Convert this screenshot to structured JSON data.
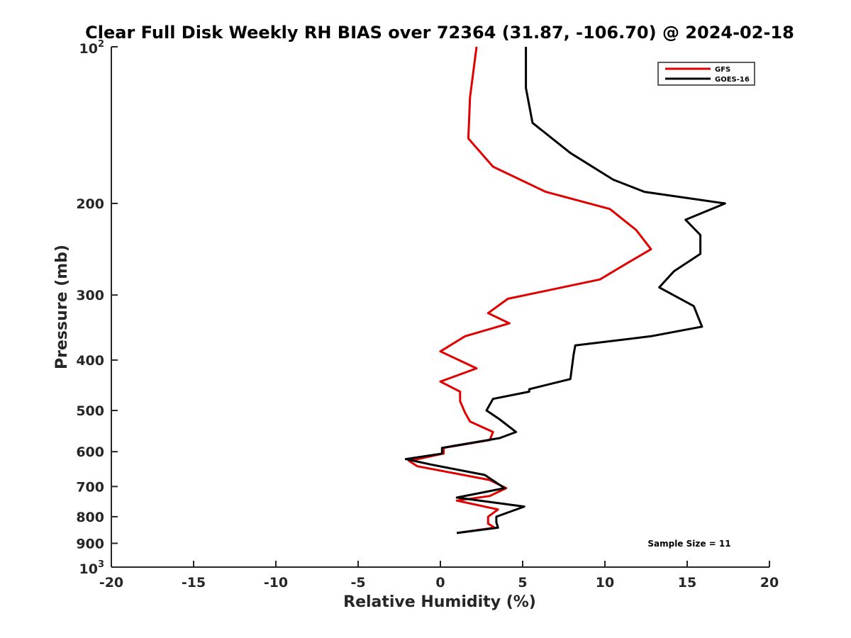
{
  "chart_data": {
    "type": "line",
    "title": "Clear Full Disk Weekly RH BIAS over 72364 (31.87, -106.70) @ 2024-02-18",
    "xlabel": "Relative Humidity (%)",
    "ylabel": "Pressure (mb)",
    "xlim": [
      -20,
      20
    ],
    "ylim": [
      100,
      1000
    ],
    "y_scale": "log",
    "y_reversed": true,
    "x_ticks": [
      "-20",
      "-15",
      "-10",
      "-5",
      "0",
      "5",
      "10",
      "15",
      "20"
    ],
    "y_ticks": [
      {
        "value": 100,
        "base": "10",
        "exp": "2"
      },
      {
        "value": 200,
        "label": "200"
      },
      {
        "value": 300,
        "label": "300"
      },
      {
        "value": 400,
        "label": "400"
      },
      {
        "value": 500,
        "label": "500"
      },
      {
        "value": 600,
        "label": "600"
      },
      {
        "value": 700,
        "label": "700"
      },
      {
        "value": 800,
        "label": "800"
      },
      {
        "value": 900,
        "label": "900"
      },
      {
        "value": 1000,
        "base": "10",
        "exp": "3"
      }
    ],
    "legend_position": "top-right",
    "annotation": "Sample Size = 11",
    "series": [
      {
        "name": "GFS",
        "color": "#e00000",
        "points": [
          [
            2.2,
            100
          ],
          [
            1.8,
            125
          ],
          [
            1.7,
            150
          ],
          [
            3.2,
            170
          ],
          [
            6.4,
            190
          ],
          [
            10.3,
            205
          ],
          [
            11.9,
            225
          ],
          [
            12.8,
            245
          ],
          [
            11.4,
            260
          ],
          [
            9.7,
            280
          ],
          [
            4.1,
            305
          ],
          [
            2.9,
            325
          ],
          [
            4.2,
            340
          ],
          [
            1.5,
            360
          ],
          [
            0.0,
            385
          ],
          [
            2.2,
            415
          ],
          [
            0.0,
            440
          ],
          [
            1.2,
            460
          ],
          [
            1.2,
            480
          ],
          [
            1.5,
            505
          ],
          [
            1.8,
            525
          ],
          [
            3.2,
            550
          ],
          [
            3.0,
            570
          ],
          [
            0.2,
            590
          ],
          [
            0.2,
            605
          ],
          [
            -1.9,
            625
          ],
          [
            -1.4,
            640
          ],
          [
            3.0,
            680
          ],
          [
            4.0,
            705
          ],
          [
            3.0,
            730
          ],
          [
            1.0,
            745
          ],
          [
            3.5,
            775
          ],
          [
            2.9,
            800
          ],
          [
            2.9,
            825
          ],
          [
            3.3,
            840
          ],
          [
            1.0,
            860
          ]
        ]
      },
      {
        "name": "GOES-16",
        "color": "#000000",
        "points": [
          [
            5.2,
            100
          ],
          [
            5.2,
            120
          ],
          [
            5.6,
            140
          ],
          [
            7.9,
            160
          ],
          [
            10.5,
            180
          ],
          [
            12.4,
            190
          ],
          [
            17.3,
            200
          ],
          [
            14.9,
            215
          ],
          [
            15.8,
            230
          ],
          [
            15.8,
            250
          ],
          [
            14.2,
            270
          ],
          [
            13.3,
            290
          ],
          [
            15.4,
            315
          ],
          [
            15.9,
            345
          ],
          [
            12.8,
            360
          ],
          [
            8.2,
            375
          ],
          [
            8.1,
            390
          ],
          [
            7.9,
            435
          ],
          [
            5.4,
            455
          ],
          [
            5.4,
            460
          ],
          [
            3.2,
            475
          ],
          [
            2.8,
            500
          ],
          [
            3.6,
            520
          ],
          [
            4.6,
            550
          ],
          [
            3.6,
            565
          ],
          [
            0.1,
            590
          ],
          [
            0.1,
            605
          ],
          [
            -2.1,
            620
          ],
          [
            -0.6,
            635
          ],
          [
            2.7,
            665
          ],
          [
            3.9,
            705
          ],
          [
            1.0,
            735
          ],
          [
            5.1,
            765
          ],
          [
            3.4,
            800
          ],
          [
            3.4,
            820
          ],
          [
            3.5,
            840
          ],
          [
            1.0,
            860
          ]
        ]
      }
    ]
  }
}
